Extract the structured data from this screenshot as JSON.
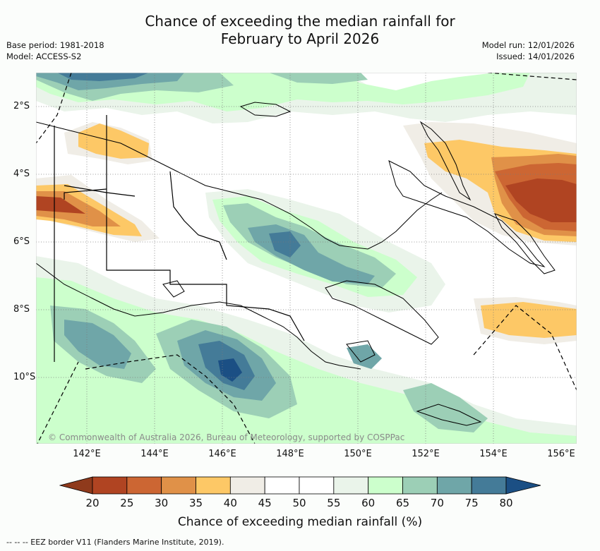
{
  "title": {
    "line1": "Chance of exceeding the median rainfall for",
    "line2": "February to April 2026"
  },
  "meta_left": {
    "base_period": "Base period: 1981-2018",
    "model": "Model: ACCESS-S2"
  },
  "meta_right": {
    "model_run": "Model run: 12/01/2026",
    "issued": "Issued: 14/01/2026"
  },
  "map": {
    "x_ticks": [
      "142°E",
      "144°E",
      "146°E",
      "148°E",
      "150°E",
      "152°E",
      "154°E",
      "156°E"
    ],
    "y_ticks": [
      "2°S",
      "4°S",
      "6°S",
      "8°S",
      "10°S"
    ],
    "copyright": "© Commonwealth of Australia 2026, Bureau of Meteorology, supported by COSPPac"
  },
  "colorbar": {
    "ticks": [
      "20",
      "25",
      "30",
      "35",
      "40",
      "45",
      "50",
      "55",
      "60",
      "65",
      "70",
      "75",
      "80"
    ],
    "colors": [
      "#b04422",
      "#cc6633",
      "#e09148",
      "#fdc866",
      "#f0ede6",
      "#ffffff",
      "#ffffff",
      "#eaf4ea",
      "#ccffcc",
      "#9ccfb6",
      "#6fa6a8",
      "#447b98"
    ],
    "under_color": "#8f3a1c",
    "over_color": "#1b4f84",
    "label": "Chance of exceeding median rainfall (%)"
  },
  "footer": {
    "legend": "-- --  -- EEZ border V11 (Flanders Marine Institute, 2019)."
  }
}
